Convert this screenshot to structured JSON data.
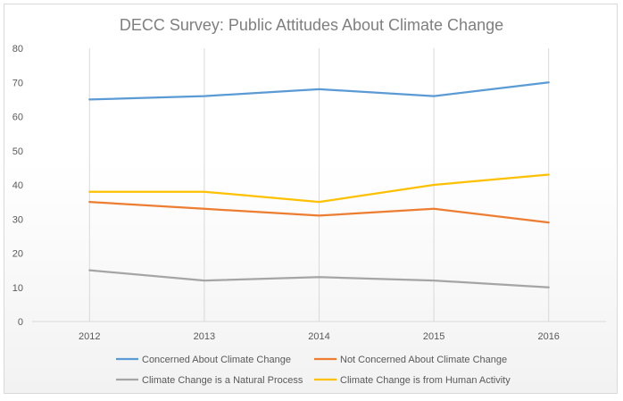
{
  "chart_data": {
    "type": "line",
    "title": "DECC Survey: Public Attitudes About Climate Change",
    "categories": [
      "2012",
      "2013",
      "2014",
      "2015",
      "2016"
    ],
    "ylim": [
      0,
      80
    ],
    "yticks": [
      0,
      10,
      20,
      30,
      40,
      50,
      60,
      70,
      80
    ],
    "grid": "vertical",
    "legend_position": "bottom",
    "series": [
      {
        "name": "Concerned About Climate Change",
        "color": "#5b9bd5",
        "values": [
          65,
          66,
          68,
          66,
          70
        ]
      },
      {
        "name": "Not Concerned About Climate Change",
        "color": "#ed7d31",
        "values": [
          35,
          33,
          31,
          33,
          29
        ]
      },
      {
        "name": "Climate Change is a Natural Process",
        "color": "#a5a5a5",
        "values": [
          15,
          12,
          13,
          12,
          10
        ]
      },
      {
        "name": "Climate Change is from Human Activity",
        "color": "#ffc000",
        "values": [
          38,
          38,
          35,
          40,
          43
        ]
      }
    ]
  }
}
